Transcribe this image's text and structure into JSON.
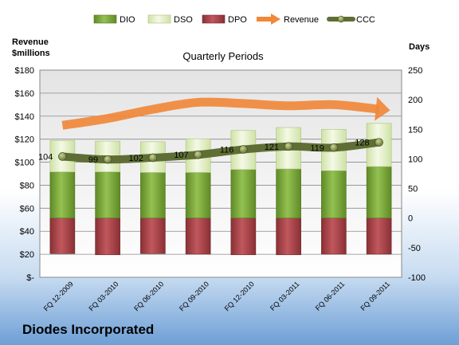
{
  "company": "Diodes Incorporated",
  "chart_data": {
    "type": "bar",
    "title": "Quarterly Periods",
    "left_axis_label": [
      "Revenue",
      "$millions"
    ],
    "right_axis_label": "Days",
    "categories": [
      "FQ 12-2009",
      "FQ 03-2010",
      "FQ 06-2010",
      "FQ 09-2010",
      "FQ 12-2010",
      "FQ 03-2011",
      "FQ 06-2011",
      "FQ 09-2011"
    ],
    "left_axis": {
      "min": 0,
      "max": 180,
      "step": 20,
      "tick_labels": [
        "$-",
        "$20",
        "$40",
        "$60",
        "$80",
        "$100",
        "$120",
        "$140",
        "$160",
        "$180"
      ]
    },
    "right_axis": {
      "min": -100,
      "max": 250,
      "step": 50,
      "tick_labels": [
        "-100",
        "-50",
        "0",
        "50",
        "100",
        "150",
        "200",
        "250"
      ]
    },
    "legend_placement": "top",
    "series": [
      {
        "name": "DIO",
        "axis": "right",
        "kind": "stacked-bar",
        "color": "#7aa53a",
        "values": [
          78,
          78,
          77,
          77,
          82,
          83,
          80,
          87
        ]
      },
      {
        "name": "DSO",
        "axis": "right",
        "kind": "stacked-bar",
        "color": "#e2efc8",
        "values": [
          53,
          52,
          52,
          57,
          66,
          70,
          70,
          73
        ]
      },
      {
        "name": "DPO",
        "axis": "right",
        "kind": "bar-below-zero",
        "color": "#a94a4e",
        "values": [
          -60,
          -62,
          -60,
          -61,
          -62,
          -62,
          -61,
          -61
        ]
      },
      {
        "name": "Revenue",
        "axis": "left",
        "kind": "arrow-line",
        "color": "#f0883a",
        "values": [
          132,
          138,
          146,
          152,
          151,
          149,
          150,
          146
        ]
      },
      {
        "name": "CCC",
        "axis": "right",
        "kind": "line-markers",
        "color": "#5f6e35",
        "values": [
          104,
          99,
          102,
          107,
          116,
          121,
          119,
          128
        ],
        "labels": [
          "104",
          "99",
          "102",
          "107",
          "116",
          "121",
          "119",
          "128"
        ]
      }
    ],
    "grid": true
  }
}
